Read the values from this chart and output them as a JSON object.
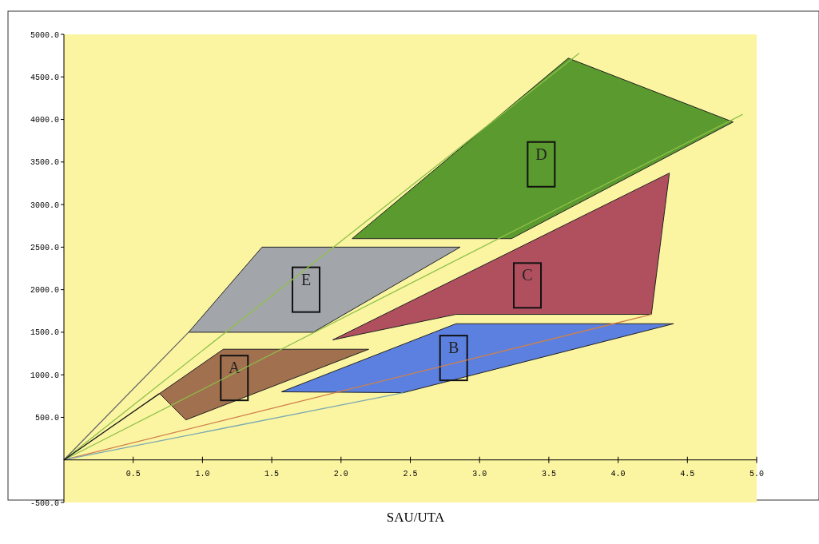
{
  "chart_data": {
    "type": "area",
    "xlabel": "SAU/UTA",
    "xlim": [
      0,
      5
    ],
    "ylim": [
      -500,
      5000
    ],
    "xticks": [
      {
        "value": 0.5,
        "label": "0.5"
      },
      {
        "value": 1,
        "label": "1.0"
      },
      {
        "value": 1.5,
        "label": "1.5"
      },
      {
        "value": 2,
        "label": "2.0"
      },
      {
        "value": 2.5,
        "label": "2.5"
      },
      {
        "value": 3,
        "label": "3.0"
      },
      {
        "value": 3.5,
        "label": "3.5"
      },
      {
        "value": 4,
        "label": "4.0"
      },
      {
        "value": 4.5,
        "label": "4.5"
      },
      {
        "value": 5,
        "label": "5.0"
      }
    ],
    "yticks": [
      {
        "value": -500,
        "label": "-500.0"
      },
      {
        "value": 500,
        "label": "500.0"
      },
      {
        "value": 1000,
        "label": "1000.0"
      },
      {
        "value": 1500,
        "label": "1500.0"
      },
      {
        "value": 2000,
        "label": "2000.0"
      },
      {
        "value": 2500,
        "label": "2500.0"
      },
      {
        "value": 3000,
        "label": "3000.0"
      },
      {
        "value": 3500,
        "label": "3500.0"
      },
      {
        "value": 4000,
        "label": "4000.0"
      },
      {
        "value": 4500,
        "label": "4500.0"
      },
      {
        "value": 5000,
        "label": "5000.0"
      }
    ],
    "series": [
      {
        "type": "line",
        "color": "#8fc04a",
        "x": [
          0,
          3.72
        ],
        "values": [
          0,
          4780
        ]
      },
      {
        "type": "line",
        "color": "#8fc04a",
        "x": [
          0,
          4.9
        ],
        "values": [
          0,
          4060
        ]
      },
      {
        "type": "line",
        "color": "#d0804a",
        "x": [
          0,
          4.24
        ],
        "values": [
          0,
          1710
        ]
      },
      {
        "type": "line",
        "color": "#7aa8b0",
        "x": [
          0,
          2.45
        ],
        "values": [
          0,
          790
        ]
      },
      {
        "type": "line",
        "color": "#666666",
        "x": [
          0,
          0.9
        ],
        "values": [
          0,
          1500
        ]
      },
      {
        "type": "line",
        "color": "#111111",
        "x": [
          0,
          0.69
        ],
        "values": [
          0,
          780
        ]
      },
      {
        "name": "D",
        "color": "#5a9a2e",
        "x": [
          2.08,
          3.64,
          4.83,
          3.23
        ],
        "values": [
          2600,
          4720,
          3970,
          2600
        ]
      },
      {
        "name": "C",
        "color": "#b0505f",
        "x": [
          1.94,
          4.37,
          4.24,
          2.83
        ],
        "values": [
          1410,
          3370,
          1710,
          1710
        ]
      },
      {
        "name": "E",
        "color": "#a2a5aa",
        "x": [
          0.9,
          1.43,
          2.86,
          1.8
        ],
        "values": [
          1500,
          2500,
          2500,
          1500
        ]
      },
      {
        "name": "A",
        "color": "#a0704f",
        "x": [
          0.69,
          1.15,
          2.2,
          0.88
        ],
        "values": [
          780,
          1300,
          1300,
          470
        ]
      },
      {
        "name": "B",
        "color": "#5b80e0",
        "x": [
          1.57,
          2.83,
          4.4,
          2.45
        ],
        "values": [
          800,
          1600,
          1600,
          790
        ]
      }
    ]
  }
}
